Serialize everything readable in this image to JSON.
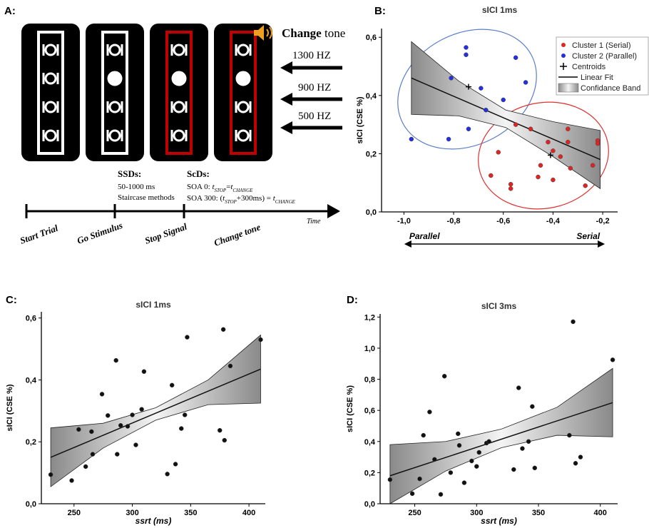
{
  "panel_a": {
    "label": "A:",
    "change_tone_bold": "Change",
    "change_tone_rest": " tone",
    "frequencies": [
      "1300 HZ",
      "900 HZ",
      "500 HZ"
    ],
    "ssds": {
      "title": "SSDs:",
      "lines": [
        "50-1000 ms",
        "Staircase methods"
      ]
    },
    "scds": {
      "title": "ScDs:",
      "soa0": [
        "SOA 0: ",
        "t",
        "STOP",
        "=",
        "t",
        "CHANGE"
      ],
      "soa300": [
        "SOA 300: (",
        "t",
        "STOP",
        "+300ms) = ",
        "t",
        "CHANGE"
      ]
    },
    "time_label": "Time",
    "timeline": [
      "Start Trial",
      "Go Stimulus",
      "Stop Signal",
      "Change tone"
    ]
  },
  "chart_data": [
    {
      "type": "scatter",
      "label": "B:",
      "title": "sICI 1ms",
      "y_label": "sICI (CSE %)",
      "xlim": [
        -1.09,
        -0.14
      ],
      "ylim": [
        0,
        0.63
      ],
      "xticks": [
        {
          "value": -1.0,
          "label": "-1,0"
        },
        {
          "value": -0.8,
          "label": "-0,8"
        },
        {
          "value": -0.6,
          "label": "-0,6"
        },
        {
          "value": -0.4,
          "label": "-0,4"
        },
        {
          "value": -0.2,
          "label": "-0,2"
        }
      ],
      "yticks": [
        {
          "value": 0,
          "label": "0,0"
        },
        {
          "value": 0.2,
          "label": "0,2"
        },
        {
          "value": 0.4,
          "label": "0,4"
        },
        {
          "value": 0.6,
          "label": "0,6"
        }
      ],
      "series": [
        {
          "name": "Cluster 1 (Serial)",
          "color": "#e02424",
          "marker": "dot",
          "x": [
            -0.65,
            -0.62,
            -0.57,
            -0.57,
            -0.55,
            -0.49,
            -0.46,
            -0.45,
            -0.42,
            -0.4,
            -0.4,
            -0.37,
            -0.34,
            -0.34,
            -0.33,
            -0.27,
            -0.24,
            -0.22,
            -0.22
          ],
          "values": [
            0.125,
            0.205,
            0.095,
            0.08,
            0.3,
            0.285,
            0.12,
            0.16,
            0.24,
            0.21,
            0.11,
            0.19,
            0.24,
            0.285,
            0.15,
            0.09,
            0.16,
            0.245,
            0.235
          ]
        },
        {
          "name": "Cluster 2 (Parallel)",
          "color": "#2430e0",
          "marker": "dot",
          "x": [
            -0.97,
            -0.82,
            -0.81,
            -0.75,
            -0.75,
            -0.74,
            -0.69,
            -0.67,
            -0.6,
            -0.55,
            -0.51
          ],
          "values": [
            0.25,
            0.25,
            0.46,
            0.565,
            0.54,
            0.285,
            0.425,
            0.35,
            0.385,
            0.53,
            0.445
          ]
        },
        {
          "name": "Centroids",
          "color": "#000000",
          "marker": "plus",
          "x": [
            -0.74,
            -0.41
          ],
          "values": [
            0.43,
            0.195
          ]
        }
      ],
      "fit": {
        "name": "Linear Fit",
        "x": [
          -0.97,
          -0.21
        ],
        "values": [
          0.46,
          0.18
        ]
      },
      "band": {
        "name": "Confidance Band",
        "x": [
          -0.97,
          -0.78,
          -0.59,
          -0.4,
          -0.21
        ],
        "upper": [
          0.585,
          0.45,
          0.35,
          0.31,
          0.28
        ],
        "lower": [
          0.335,
          0.33,
          0.29,
          0.19,
          0.08
        ]
      },
      "direction_labels": [
        "Parallel",
        "Serial"
      ],
      "legend": "upper right"
    },
    {
      "type": "scatter",
      "label": "C:",
      "title": "sICI 1ms",
      "y_label": "sICI (CSE %)",
      "x_label": "ssrt (ms)",
      "xlim": [
        222,
        414
      ],
      "ylim": [
        0,
        0.62
      ],
      "xticks": [
        250,
        300,
        350,
        400
      ],
      "yticks": [
        {
          "value": 0,
          "label": "0,0"
        },
        {
          "value": 0.2,
          "label": "0,2"
        },
        {
          "value": 0.4,
          "label": "0,4"
        },
        {
          "value": 0.6,
          "label": "0,6"
        }
      ],
      "series": [
        {
          "color": "#111111",
          "marker": "dot",
          "x": [
            230,
            248,
            254,
            260,
            265,
            266,
            274,
            279,
            286,
            287,
            290,
            296,
            300,
            303,
            308,
            310,
            330,
            334,
            337,
            342,
            345,
            347,
            375,
            378,
            379,
            384,
            410
          ],
          "values": [
            0.094,
            0.075,
            0.24,
            0.12,
            0.233,
            0.16,
            0.354,
            0.285,
            0.463,
            0.16,
            0.253,
            0.25,
            0.287,
            0.19,
            0.305,
            0.427,
            0.096,
            0.383,
            0.128,
            0.243,
            0.287,
            0.538,
            0.237,
            0.563,
            0.205,
            0.445,
            0.53
          ]
        }
      ],
      "fit": {
        "x": [
          230,
          410
        ],
        "values": [
          0.15,
          0.435
        ]
      },
      "band": {
        "x": [
          230,
          275,
          320,
          365,
          410
        ],
        "upper": [
          0.245,
          0.26,
          0.31,
          0.4,
          0.545
        ],
        "lower": [
          0.055,
          0.18,
          0.27,
          0.32,
          0.325
        ]
      }
    },
    {
      "type": "scatter",
      "label": "D:",
      "title": "sICI 3ms",
      "y_label": "sICI (CSE %)",
      "x_label": "ssrt (ms)",
      "xlim": [
        222,
        414
      ],
      "ylim": [
        0,
        1.22
      ],
      "xticks": [
        250,
        300,
        350,
        400
      ],
      "yticks": [
        {
          "value": 0,
          "label": "0,0"
        },
        {
          "value": 0.2,
          "label": "0,2"
        },
        {
          "value": 0.4,
          "label": "0,4"
        },
        {
          "value": 0.6,
          "label": "0,6"
        },
        {
          "value": 0.8,
          "label": "0,8"
        },
        {
          "value": 1.0,
          "label": "1,0"
        },
        {
          "value": 1.2,
          "label": "1,2"
        }
      ],
      "series": [
        {
          "color": "#111111",
          "marker": "dot",
          "x": [
            230,
            248,
            254,
            257,
            262,
            266,
            271,
            274,
            279,
            285,
            286,
            290,
            296,
            300,
            302,
            308,
            310,
            330,
            334,
            337,
            342,
            345,
            347,
            375,
            378,
            380,
            384,
            410
          ],
          "values": [
            0.155,
            0.065,
            0.16,
            0.44,
            0.59,
            0.285,
            0.06,
            0.82,
            0.2,
            0.45,
            0.375,
            0.135,
            0.275,
            0.24,
            0.33,
            0.39,
            0.4,
            0.22,
            0.745,
            0.355,
            0.4,
            0.625,
            0.23,
            0.44,
            1.17,
            0.26,
            0.3,
            0.925
          ]
        }
      ],
      "fit": {
        "x": [
          230,
          410
        ],
        "values": [
          0.18,
          0.65
        ]
      },
      "band": {
        "x": [
          230,
          275,
          320,
          365,
          410
        ],
        "upper": [
          0.38,
          0.4,
          0.48,
          0.62,
          0.87
        ],
        "lower": [
          0,
          0.21,
          0.36,
          0.44,
          0.43
        ]
      }
    }
  ]
}
